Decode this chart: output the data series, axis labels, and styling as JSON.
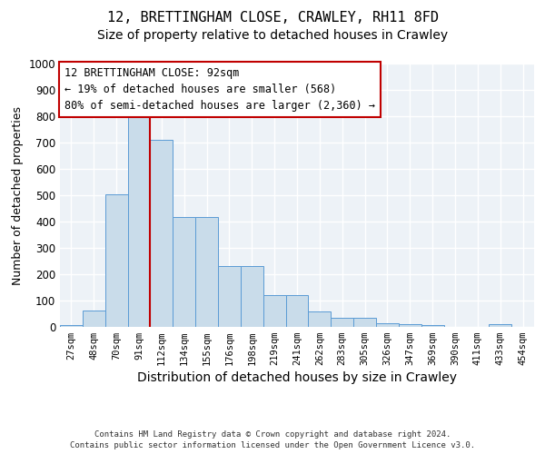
{
  "title_line1": "12, BRETTINGHAM CLOSE, CRAWLEY, RH11 8FD",
  "title_line2": "Size of property relative to detached houses in Crawley",
  "xlabel": "Distribution of detached houses by size in Crawley",
  "ylabel": "Number of detached properties",
  "footer_line1": "Contains HM Land Registry data © Crown copyright and database right 2024.",
  "footer_line2": "Contains public sector information licensed under the Open Government Licence v3.0.",
  "bin_labels": [
    "27sqm",
    "48sqm",
    "70sqm",
    "91sqm",
    "112sqm",
    "134sqm",
    "155sqm",
    "176sqm",
    "198sqm",
    "219sqm",
    "241sqm",
    "262sqm",
    "283sqm",
    "305sqm",
    "326sqm",
    "347sqm",
    "369sqm",
    "390sqm",
    "411sqm",
    "433sqm",
    "454sqm"
  ],
  "bar_values": [
    7,
    62,
    505,
    825,
    710,
    418,
    418,
    230,
    230,
    120,
    120,
    58,
    35,
    35,
    15,
    12,
    8,
    0,
    0,
    10,
    0
  ],
  "ylim": [
    0,
    1000
  ],
  "yticks": [
    0,
    100,
    200,
    300,
    400,
    500,
    600,
    700,
    800,
    900,
    1000
  ],
  "bar_color": "#c9dcea",
  "bar_edge_color": "#5b9bd5",
  "vline_x": 3.5,
  "vline_color": "#c00000",
  "annotation_text": "12 BRETTINGHAM CLOSE: 92sqm\n← 19% of detached houses are smaller (568)\n80% of semi-detached houses are larger (2,360) →",
  "annotation_box_facecolor": "#ffffff",
  "annotation_box_edgecolor": "#c00000",
  "bg_color": "#edf2f7",
  "grid_color": "#ffffff",
  "title_fontsize": 11,
  "subtitle_fontsize": 10,
  "tick_fontsize": 7.5,
  "ylabel_fontsize": 9,
  "xlabel_fontsize": 10,
  "annotation_fontsize": 8.5,
  "footer_fontsize": 6.5
}
